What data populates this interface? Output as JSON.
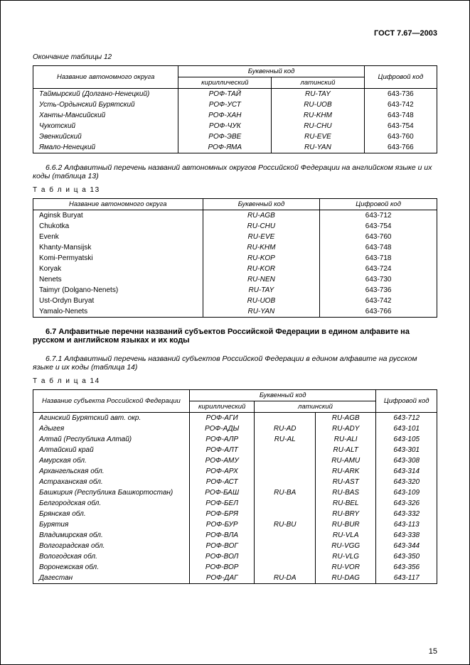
{
  "doc_header": "ГОСТ 7.67—2003",
  "table12_caption": "Окончание таблицы 12",
  "table12_headers": {
    "name": "Название автономного округа",
    "letter_code": "Буквенный код",
    "cyrillic": "кириллический",
    "latin": "латинский",
    "digit_code": "Цифровой код"
  },
  "table12_rows": [
    {
      "name": "Таймырский (Долгано-Ненецкий)",
      "cyr": "РОФ-ТАЙ",
      "lat": "RU-TAY",
      "num": "643-736"
    },
    {
      "name": "Усть-Ордынский Бурятский",
      "cyr": "РОФ-УСТ",
      "lat": "RU-UOB",
      "num": "643-742"
    },
    {
      "name": "Ханты-Мансийский",
      "cyr": "РОФ-ХАН",
      "lat": "RU-KHM",
      "num": "643-748"
    },
    {
      "name": "Чукотский",
      "cyr": "РОФ-ЧУК",
      "lat": "RU-CHU",
      "num": "643-754"
    },
    {
      "name": "Эвенкийский",
      "cyr": "РОФ-ЭВЕ",
      "lat": "RU-EVE",
      "num": "643-760"
    },
    {
      "name": "Ямало-Ненецкий",
      "cyr": "РОФ-ЯМА",
      "lat": "RU-YAN",
      "num": "643-766"
    }
  ],
  "para_662": "6.6.2 Алфавитный перечень названий автономных округов Российской Федерации на английском языке и их коды (таблица 13)",
  "table13_label": "Т а б л и ц а   13",
  "table13_headers": {
    "name": "Название автономного округа",
    "letter_code": "Буквенный код",
    "digit_code": "Цифровой код"
  },
  "table13_rows": [
    {
      "name": "Aginsk Buryat",
      "lat": "RU-AGB",
      "num": "643-712"
    },
    {
      "name": "Chukotka",
      "lat": "RU-CHU",
      "num": "643-754"
    },
    {
      "name": "Evenk",
      "lat": "RU-EVE",
      "num": "643-760"
    },
    {
      "name": "Khanty-Mansijsk",
      "lat": "RU-KHM",
      "num": "643-748"
    },
    {
      "name": "Komi-Permyatski",
      "lat": "RU-KOP",
      "num": "643-718"
    },
    {
      "name": "Koryak",
      "lat": "RU-KOR",
      "num": "643-724"
    },
    {
      "name": "Nenets",
      "lat": "RU-NEN",
      "num": "643-730"
    },
    {
      "name": "Taimyr (Dolgano-Nenets)",
      "lat": "RU-TAY",
      "num": "643-736"
    },
    {
      "name": "Ust-Ordyn Buryat",
      "lat": "RU-UOB",
      "num": "643-742"
    },
    {
      "name": "Yamalo-Nenets",
      "lat": "RU-YAN",
      "num": "643-766"
    }
  ],
  "section_67": "6.7   Алфавитные перечни названий субъектов Российской Федерации в едином алфавите на русском и английском языках и их коды",
  "para_671": "6.7.1 Алфавитный перечень названий субъектов Российской Федерации в едином алфавите на русском языке и их коды (таблица 14)",
  "table14_label": "Т а б л и ц а   14",
  "table14_headers": {
    "name": "Название субъекта Российской Федерации",
    "letter_code": "Буквенный код",
    "cyrillic": "кириллический",
    "latin": "латинский",
    "digit_code": "Цифровой код"
  },
  "table14_rows": [
    {
      "name": "Агинский Бурятский авт. окр.",
      "cyr": "РОФ-АГИ",
      "lat1": "",
      "lat2": "RU-AGB",
      "num": "643-712"
    },
    {
      "name": "Адыгея",
      "cyr": "РОФ-АДЫ",
      "lat1": "RU-AD",
      "lat2": "RU-ADY",
      "num": "643-101"
    },
    {
      "name": "Алтай (Республика Алтай)",
      "cyr": "РОФ-АЛР",
      "lat1": "RU-AL",
      "lat2": "RU-ALI",
      "num": "643-105"
    },
    {
      "name": "Алтайский край",
      "cyr": "РОФ-АЛТ",
      "lat1": "",
      "lat2": "RU-ALT",
      "num": "643-301"
    },
    {
      "name": "Амурская обл.",
      "cyr": "РОФ-АМУ",
      "lat1": "",
      "lat2": "RU-AMU",
      "num": "643-308"
    },
    {
      "name": "Архангельская обл.",
      "cyr": "РОФ-АРХ",
      "lat1": "",
      "lat2": "RU-ARK",
      "num": "643-314"
    },
    {
      "name": "Астраханская обл.",
      "cyr": "РОФ-АСТ",
      "lat1": "",
      "lat2": "RU-AST",
      "num": "643-320"
    },
    {
      "name": "Башкирия (Республика Башкортостан)",
      "cyr": "РОФ-БАШ",
      "lat1": "RU-BA",
      "lat2": "RU-BAS",
      "num": "643-109"
    },
    {
      "name": "Белгородская обл.",
      "cyr": "РОФ-БЕЛ",
      "lat1": "",
      "lat2": "RU-BEL",
      "num": "643-326"
    },
    {
      "name": "Брянская обл.",
      "cyr": "РОФ-БРЯ",
      "lat1": "",
      "lat2": "RU-BRY",
      "num": "643-332"
    },
    {
      "name": "Бурятия",
      "cyr": "РОФ-БУР",
      "lat1": "RU-BU",
      "lat2": "RU-BUR",
      "num": "643-113"
    },
    {
      "name": "Владимирская обл.",
      "cyr": "РОФ-ВЛА",
      "lat1": "",
      "lat2": "RU-VLA",
      "num": "643-338"
    },
    {
      "name": "Волгоградская обл.",
      "cyr": "РОФ-ВОГ",
      "lat1": "",
      "lat2": "RU-VGG",
      "num": "643-344"
    },
    {
      "name": "Вологодская обл.",
      "cyr": "РОФ-ВОЛ",
      "lat1": "",
      "lat2": "RU-VLG",
      "num": "643-350"
    },
    {
      "name": "Воронежская обл.",
      "cyr": "РОФ-ВОР",
      "lat1": "",
      "lat2": "RU-VOR",
      "num": "643-356"
    },
    {
      "name": "Дагестан",
      "cyr": "РОФ-ДАГ",
      "lat1": "RU-DA",
      "lat2": "RU-DAG",
      "num": "643-117"
    }
  ],
  "page_number": "15"
}
